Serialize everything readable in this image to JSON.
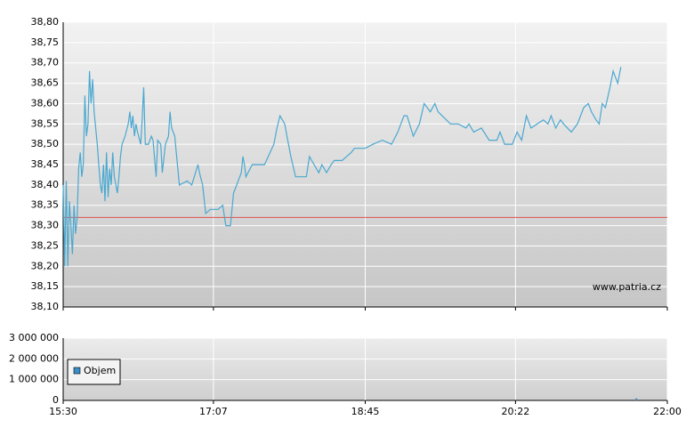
{
  "chart_data": [
    {
      "type": "line",
      "color": "#4aa8d0",
      "x": [
        930,
        931,
        932,
        933,
        934,
        935,
        936,
        937,
        938,
        939,
        940,
        941,
        942,
        943,
        944,
        945,
        946,
        947,
        948,
        949,
        950,
        952,
        953,
        954,
        955,
        956,
        957,
        958,
        959,
        960,
        961,
        962,
        963,
        964,
        965,
        966,
        967,
        968,
        970,
        972,
        973,
        974,
        975,
        976,
        977,
        978,
        980,
        981,
        982,
        983,
        985,
        987,
        988,
        990,
        991,
        993,
        994,
        996,
        998,
        999,
        1000,
        1002,
        1003,
        1005,
        1010,
        1013,
        1017,
        1018,
        1020,
        1022,
        1025,
        1030,
        1033,
        1035,
        1038,
        1040,
        1042,
        1045,
        1046,
        1047,
        1048,
        1052,
        1060,
        1066,
        1068,
        1070,
        1073,
        1075,
        1077,
        1080,
        1087,
        1089,
        1092,
        1095,
        1097,
        1100,
        1103,
        1105,
        1110,
        1116,
        1118,
        1125,
        1130,
        1136,
        1142,
        1146,
        1150,
        1152,
        1156,
        1160,
        1163,
        1167,
        1170,
        1172,
        1180,
        1185,
        1190,
        1192,
        1195,
        1200,
        1205,
        1210,
        1212,
        1215,
        1220,
        1223,
        1226,
        1229,
        1232,
        1236,
        1240,
        1243,
        1245,
        1248,
        1251,
        1253,
        1258,
        1262,
        1264,
        1266,
        1269,
        1271,
        1274,
        1276,
        1278,
        1280,
        1283,
        1285,
        1288,
        1290
      ],
      "values": [
        38.4,
        38.2,
        38.41,
        38.2,
        38.36,
        38.3,
        38.23,
        38.35,
        38.28,
        38.32,
        38.44,
        38.48,
        38.42,
        38.45,
        38.62,
        38.52,
        38.55,
        38.68,
        38.6,
        38.66,
        38.58,
        38.5,
        38.45,
        38.4,
        38.38,
        38.45,
        38.36,
        38.48,
        38.37,
        38.44,
        38.4,
        38.48,
        38.42,
        38.4,
        38.38,
        38.42,
        38.47,
        38.5,
        38.52,
        38.55,
        38.58,
        38.54,
        38.57,
        38.52,
        38.55,
        38.53,
        38.5,
        38.56,
        38.64,
        38.5,
        38.5,
        38.52,
        38.51,
        38.42,
        38.51,
        38.5,
        38.43,
        38.5,
        38.52,
        38.58,
        38.54,
        38.52,
        38.48,
        38.4,
        38.41,
        38.4,
        38.45,
        38.43,
        38.4,
        38.33,
        38.34,
        38.34,
        38.35,
        38.3,
        38.3,
        38.38,
        38.4,
        38.43,
        38.47,
        38.45,
        38.42,
        38.45,
        38.45,
        38.5,
        38.54,
        38.57,
        38.55,
        38.51,
        38.47,
        38.42,
        38.42,
        38.47,
        38.45,
        38.43,
        38.45,
        38.43,
        38.45,
        38.46,
        38.46,
        38.48,
        38.49,
        38.49,
        38.5,
        38.51,
        38.5,
        38.53,
        38.57,
        38.57,
        38.52,
        38.55,
        38.6,
        38.58,
        38.6,
        38.58,
        38.55,
        38.55,
        38.54,
        38.55,
        38.53,
        38.54,
        38.51,
        38.51,
        38.53,
        38.5,
        38.5,
        38.53,
        38.51,
        38.57,
        38.54,
        38.55,
        38.56,
        38.55,
        38.57,
        38.54,
        38.56,
        38.55,
        38.53,
        38.55,
        38.57,
        38.59,
        38.6,
        38.58,
        38.56,
        38.55,
        38.6,
        38.59,
        38.64,
        38.68,
        38.65,
        38.69
      ],
      "reference_line": {
        "value": 38.32,
        "color": "#e05050"
      },
      "xlim": [
        930,
        1320
      ],
      "ylim": [
        38.1,
        38.8
      ],
      "yticks": [
        {
          "value": 38.1,
          "label": "38,10"
        },
        {
          "value": 38.15,
          "label": "38,15"
        },
        {
          "value": 38.2,
          "label": "38,20"
        },
        {
          "value": 38.25,
          "label": "38,25"
        },
        {
          "value": 38.3,
          "label": "38,30"
        },
        {
          "value": 38.35,
          "label": "38,35"
        },
        {
          "value": 38.4,
          "label": "38,40"
        },
        {
          "value": 38.45,
          "label": "38,45"
        },
        {
          "value": 38.5,
          "label": "38,50"
        },
        {
          "value": 38.55,
          "label": "38,55"
        },
        {
          "value": 38.6,
          "label": "38,60"
        },
        {
          "value": 38.65,
          "label": "38,65"
        },
        {
          "value": 38.7,
          "label": "38,70"
        },
        {
          "value": 38.75,
          "label": "38,75"
        },
        {
          "value": 38.8,
          "label": "38,80"
        }
      ],
      "grid": true,
      "annotation": "www.patria.cz"
    },
    {
      "type": "bar",
      "x": [
        1125,
        1300
      ],
      "series": [
        {
          "name": "Objem",
          "color": "#3a8fc8",
          "values": [
            20000,
            100000
          ]
        }
      ],
      "xlim": [
        930,
        1320
      ],
      "xticks": [
        {
          "value": 930,
          "label": "15:30"
        },
        {
          "value": 1027,
          "label": "17:07"
        },
        {
          "value": 1125,
          "label": "18:45"
        },
        {
          "value": 1222,
          "label": "20:22"
        },
        {
          "value": 1320,
          "label": "22:00"
        }
      ],
      "ylim": [
        0,
        3000000
      ],
      "yticks": [
        0,
        {
          "value": 1000000,
          "label": "1 000 000"
        },
        {
          "value": 2000000,
          "label": "2 000 000"
        },
        {
          "value": 3000000,
          "label": "3 000 000"
        }
      ],
      "grid": true,
      "legend": "left"
    }
  ]
}
